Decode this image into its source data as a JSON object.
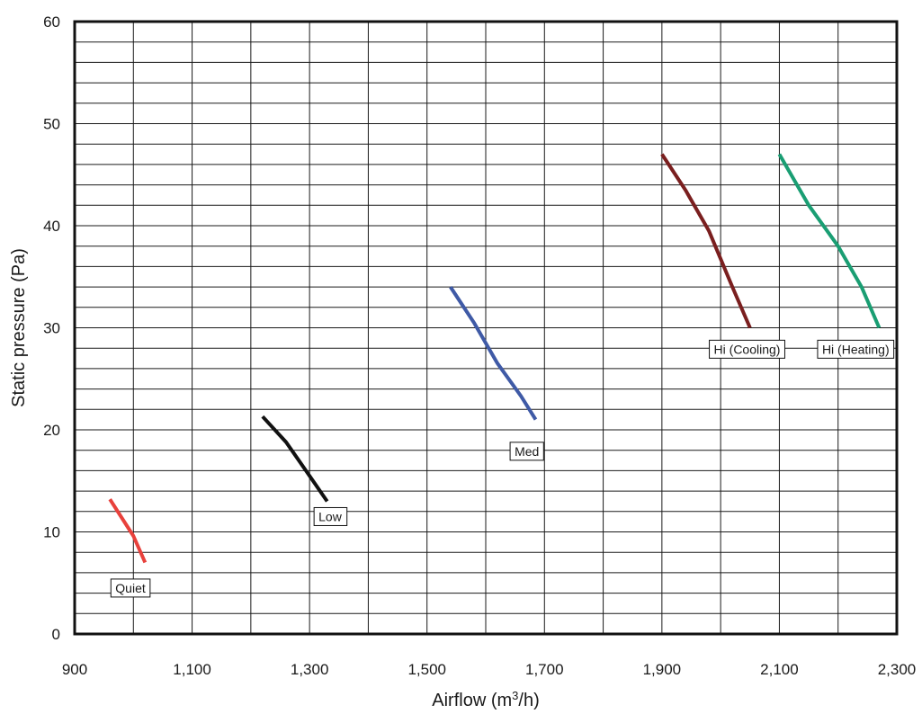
{
  "chart_data": {
    "type": "line",
    "title": "",
    "xlabel": "Airflow (m",
    "xlabel_sup": "3",
    "xlabel_tail": "/h)",
    "ylabel": "Static pressure (Pa)",
    "xlim": [
      900,
      2300
    ],
    "ylim": [
      0,
      60
    ],
    "x_ticks": [
      900,
      1100,
      1300,
      1500,
      1700,
      1900,
      2100,
      2300
    ],
    "x_tick_labels": [
      "900",
      "1,100",
      "1,300",
      "1,500",
      "1,700",
      "1,900",
      "2,100",
      "2,300"
    ],
    "y_ticks": [
      0,
      10,
      20,
      30,
      40,
      50,
      60
    ],
    "y_tick_labels": [
      "0",
      "10",
      "20",
      "30",
      "40",
      "50",
      "60"
    ],
    "x_minor_step": 100,
    "y_minor_step": 2,
    "grid": true,
    "series": [
      {
        "name": "Quiet",
        "color": "#e8413c",
        "points": [
          [
            960,
            13.2
          ],
          [
            980,
            11.4
          ],
          [
            1000,
            9.6
          ],
          [
            1020,
            7.0
          ]
        ],
        "label_anchor": [
          995,
          4.5
        ]
      },
      {
        "name": "Low",
        "color": "#111111",
        "points": [
          [
            1220,
            21.3
          ],
          [
            1260,
            18.8
          ],
          [
            1300,
            15.5
          ],
          [
            1330,
            13.0
          ]
        ],
        "label_anchor": [
          1335,
          11.5
        ]
      },
      {
        "name": "Med",
        "color": "#3f5aa6",
        "points": [
          [
            1540,
            34.0
          ],
          [
            1580,
            30.5
          ],
          [
            1620,
            26.5
          ],
          [
            1660,
            23.3
          ],
          [
            1685,
            21.0
          ]
        ],
        "label_anchor": [
          1670,
          17.9
        ]
      },
      {
        "name": "Hi (Cooling)",
        "color": "#7a1f1f",
        "points": [
          [
            1900,
            47.0
          ],
          [
            1940,
            43.5
          ],
          [
            1980,
            39.5
          ],
          [
            2020,
            34.0
          ],
          [
            2050,
            30.0
          ]
        ],
        "label_anchor": [
          2045,
          27.9
        ]
      },
      {
        "name": "Hi (Heating)",
        "color": "#1a9e73",
        "points": [
          [
            2100,
            47.0
          ],
          [
            2150,
            42.0
          ],
          [
            2200,
            38.0
          ],
          [
            2240,
            34.0
          ],
          [
            2270,
            30.0
          ]
        ],
        "label_anchor": [
          2230,
          27.9
        ]
      }
    ]
  }
}
